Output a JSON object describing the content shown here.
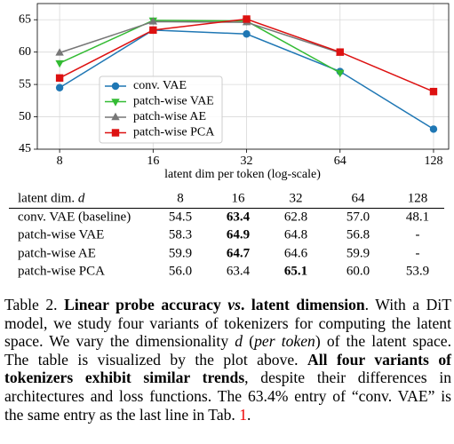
{
  "chart_data": {
    "type": "line",
    "x_label": "latent dim per token (log-scale)",
    "x": [
      8,
      16,
      32,
      64,
      128
    ],
    "xlog": true,
    "xlim": [
      6.78,
      143.2
    ],
    "xticks": [
      8,
      16,
      32,
      64,
      128
    ],
    "ylim": [
      45,
      67.5
    ],
    "yticks": [
      45,
      50,
      55,
      60,
      65
    ],
    "grid": true,
    "legend": "center left",
    "series": [
      {
        "name": "conv. VAE",
        "color": "#1f77b4",
        "marker": "circle",
        "values": [
          54.5,
          63.4,
          62.8,
          57.0,
          48.1
        ]
      },
      {
        "name": "patch-wise VAE",
        "color": "#33bb33",
        "marker": "triangle-down",
        "values": [
          58.3,
          64.9,
          64.8,
          56.8,
          null
        ]
      },
      {
        "name": "patch-wise AE",
        "color": "#777777",
        "marker": "triangle-up",
        "values": [
          59.9,
          64.7,
          64.6,
          59.9,
          null
        ]
      },
      {
        "name": "patch-wise PCA",
        "color": "#dd1111",
        "marker": "square",
        "values": [
          56.0,
          63.4,
          65.1,
          60.0,
          53.9
        ]
      }
    ]
  },
  "table": {
    "header_label": "latent dim.",
    "header_symbol": "d",
    "columns": [
      "8",
      "16",
      "32",
      "64",
      "128"
    ],
    "rows": [
      {
        "label": "conv. VAE (baseline)",
        "cells": [
          "54.5",
          "63.4",
          "62.8",
          "57.0",
          "48.1"
        ],
        "bold": [
          1
        ]
      },
      {
        "label": "patch-wise VAE",
        "cells": [
          "58.3",
          "64.9",
          "64.8",
          "56.8",
          "-"
        ],
        "bold": [
          1
        ]
      },
      {
        "label": "patch-wise AE",
        "cells": [
          "59.9",
          "64.7",
          "64.6",
          "59.9",
          "-"
        ],
        "bold": [
          1
        ]
      },
      {
        "label": "patch-wise PCA",
        "cells": [
          "56.0",
          "63.4",
          "65.1",
          "60.0",
          "53.9"
        ],
        "bold": [
          2
        ]
      }
    ]
  },
  "caption": {
    "runs": [
      {
        "text": "Table 2.  ",
        "style": "normal"
      },
      {
        "text": "Linear probe accuracy ",
        "style": "bold"
      },
      {
        "text": "vs",
        "style": "bold-italic"
      },
      {
        "text": ". latent dimension",
        "style": "bold"
      },
      {
        "text": ". With a DiT model, we study four variants of tokenizers for computing the latent space. We vary the dimensionality ",
        "style": "normal"
      },
      {
        "text": "d",
        "style": "italic"
      },
      {
        "text": " (",
        "style": "normal"
      },
      {
        "text": "per token",
        "style": "italic"
      },
      {
        "text": ") of the latent space. The table is visualized by the plot above. ",
        "style": "normal"
      },
      {
        "text": "All four variants of tokenizers exhibit similar trends",
        "style": "bold"
      },
      {
        "text": ", despite their differences in architectures and loss functions. The 63.4% entry of “conv. VAE” is the same entry as the last line in Tab. ",
        "style": "normal"
      },
      {
        "text": "1",
        "style": "link"
      },
      {
        "text": ".",
        "style": "normal"
      }
    ]
  }
}
